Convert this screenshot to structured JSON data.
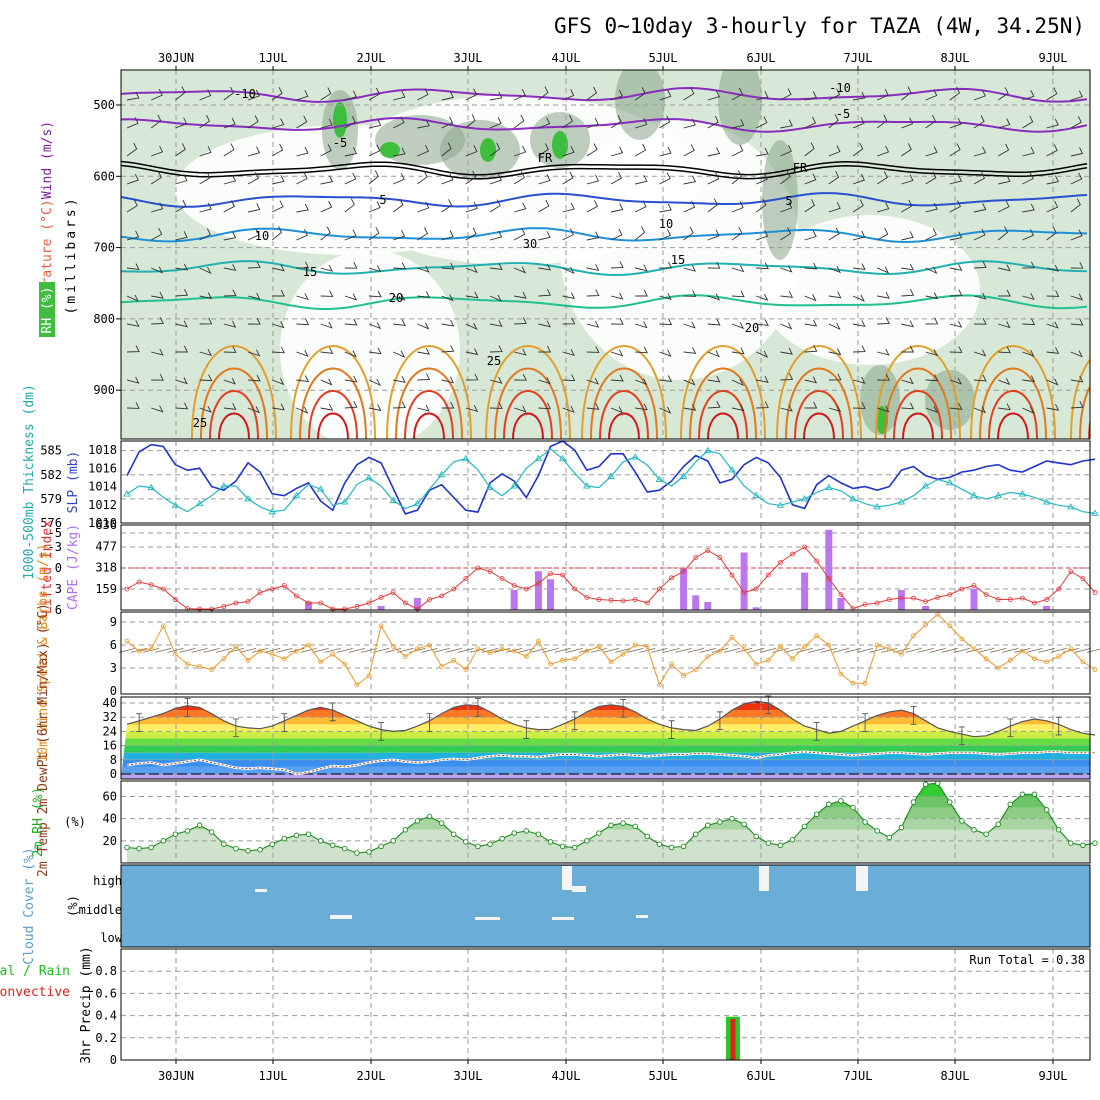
{
  "title": "GFS 0~10day 3-hourly for TAZA (4W, 34.25N)",
  "dates": [
    "30JUN",
    "1JUL",
    "2JUL",
    "3JUL",
    "4JUL",
    "5JUL",
    "6JUL",
    "7JUL",
    "8JUL",
    "9JUL"
  ],
  "colors": {
    "grid": "#9a9a9a",
    "rh_fill": "#d8e8d6",
    "rh_dark": "#8aa68a",
    "rh_green": "#3dbf3d",
    "cloud": "#6aadd6",
    "precip_total": "#22cc22",
    "precip_conv": "#dd2222"
  },
  "chart_data": [
    {
      "panel": "upper-air",
      "type": "heatmap",
      "ylabel_wind": "Wind (m/s)",
      "ylabel_temp": "Temperature (°C)",
      "ylabel_rh": "RH (%)",
      "ylabel_units": "(millibars)",
      "yticks": [
        500,
        600,
        700,
        800,
        900
      ],
      "ylim": [
        960,
        450
      ],
      "isotherm_labels": [
        "-10",
        "-10",
        "-5",
        "-5",
        "FR",
        "FR",
        "5",
        "5",
        "10",
        "10",
        "15",
        "15",
        "20",
        "20",
        "25",
        "25",
        "30"
      ]
    },
    {
      "panel": "slp-thickness",
      "type": "line",
      "ylabel_left": "1000-500mb Thickness (dm)",
      "ylabel_right": "SLP (mb)",
      "yticks_left": [
        "585",
        "582",
        "579",
        "576"
      ],
      "yticks_right": [
        "1018",
        "1016",
        "1014",
        "1012",
        "1010"
      ],
      "slp_ylim": [
        1010,
        1019
      ],
      "thick_ylim": [
        576,
        586
      ],
      "series": [
        {
          "name": "SLP",
          "values": [
            1015.2,
            1017.8,
            1018.6,
            1018.4,
            1016.4,
            1015.8,
            1016.0,
            1014.0,
            1013.6,
            1014.6,
            1016.6,
            1015.6,
            1013.2,
            1013.0,
            1013.8,
            1014.4,
            1012.4,
            1011.4,
            1014.4,
            1016.4,
            1017.2,
            1016.6,
            1013.8,
            1011.0,
            1011.4,
            1013.6,
            1014.2,
            1012.8,
            1011.4,
            1011.2,
            1014.4,
            1015.4,
            1014.6,
            1012.8,
            1015.2,
            1018.4,
            1019.0,
            1018.0,
            1015.8,
            1016.2,
            1017.6,
            1017.6,
            1015.6,
            1013.4,
            1013.6,
            1014.6,
            1016.2,
            1017.4,
            1016.8,
            1014.4,
            1014.8,
            1016.4,
            1017.2,
            1016.6,
            1015.0,
            1012.0,
            1011.6,
            1014.2,
            1015.2,
            1014.4,
            1013.8,
            1014.0,
            1013.6,
            1014.0,
            1015.8,
            1016.2,
            1015.2,
            1014.8,
            1015.0,
            1015.6,
            1015.8,
            1016.2,
            1016.4,
            1015.8,
            1015.6,
            1016.2,
            1016.8,
            1016.6,
            1016.4,
            1016.8,
            1017.0
          ]
        },
        {
          "name": "Thickness",
          "values": [
            579.6,
            580.6,
            580.4,
            579.2,
            578.2,
            577.4,
            578.4,
            579.4,
            580.6,
            580.6,
            579.0,
            578.0,
            577.4,
            577.6,
            579.4,
            580.8,
            580.2,
            578.2,
            578.6,
            580.8,
            581.6,
            580.6,
            578.8,
            577.8,
            578.4,
            580.2,
            582.0,
            583.6,
            584.0,
            582.6,
            580.4,
            579.4,
            580.6,
            582.8,
            584.0,
            585.2,
            584.0,
            582.2,
            580.6,
            580.4,
            581.8,
            583.6,
            584.2,
            583.2,
            581.4,
            580.6,
            581.8,
            583.6,
            585.0,
            584.6,
            582.6,
            580.6,
            579.4,
            578.4,
            578.2,
            578.6,
            579.0,
            579.8,
            580.4,
            580.0,
            579.0,
            578.4,
            578.0,
            578.2,
            578.6,
            579.4,
            580.6,
            581.4,
            581.0,
            580.2,
            579.4,
            579.0,
            579.4,
            579.8,
            579.6,
            579.2,
            578.6,
            578.2,
            578.0,
            577.4,
            577.2
          ]
        }
      ]
    },
    {
      "panel": "cape-li",
      "type": "bar",
      "ylabel_left": "Lifted Index",
      "ylabel_right": "CAPE (J/kg)",
      "yticks_left": [
        "-5",
        "-3",
        "0",
        "3",
        "6"
      ],
      "yticks_right": [
        "636",
        "477",
        "318",
        "159"
      ],
      "li_ylim": [
        6,
        -6
      ],
      "cape_ylim": [
        0,
        636
      ],
      "series": [
        {
          "name": "Lifted Index",
          "values": [
            3,
            2,
            2.4,
            3,
            4.5,
            5.8,
            6.4,
            6,
            5.5,
            5,
            4.8,
            3.5,
            3,
            2.5,
            4,
            5,
            5,
            6,
            6.5,
            5.5,
            5,
            4.2,
            3.5,
            5,
            6.2,
            4.5,
            4,
            3,
            1.5,
            0,
            0.5,
            1.5,
            2.5,
            3,
            2.2,
            0.8,
            1,
            3,
            4.2,
            4.5,
            4.6,
            4.7,
            4.5,
            5,
            3,
            1.4,
            0.5,
            -1.5,
            -2.5,
            -1.5,
            1,
            3.5,
            3,
            1,
            -0.8,
            -2,
            -3,
            -1,
            1.5,
            3.8,
            5.8,
            5.2,
            5,
            4.5,
            4.3,
            4.3,
            4.8,
            4.2,
            3.8,
            3,
            2.5,
            3.8,
            4.5,
            4.5,
            4.3,
            5,
            4.5,
            3,
            0.5,
            1.5,
            3.5
          ]
        },
        {
          "name": "CAPE",
          "x": [
            15,
            21,
            24,
            32,
            34,
            35,
            46,
            47,
            48,
            51,
            52,
            56,
            58,
            59,
            64,
            66,
            70,
            76,
            82
          ]
        }
      ]
    },
    {
      "panel": "wind10m",
      "type": "line",
      "ylabel": "10m Wind Speed & Barbs (m/s)",
      "yticks": [
        "9",
        "6",
        "3",
        "0"
      ],
      "ylim": [
        0,
        10
      ],
      "series": [
        {
          "name": "Speed",
          "values": [
            6.5,
            5.2,
            5.5,
            8.5,
            4.8,
            3.5,
            3.2,
            2.8,
            4.2,
            5.8,
            4,
            5.2,
            4.8,
            4.2,
            5.2,
            6,
            3.8,
            4.8,
            3.5,
            0.8,
            2,
            8.5,
            5.8,
            4.5,
            5.5,
            6,
            3.2,
            4,
            2.8,
            5.5,
            5,
            5.5,
            5.2,
            4.5,
            6.5,
            3.5,
            4,
            4.2,
            5.2,
            5.8,
            3.8,
            4.8,
            6,
            5.8,
            0.8,
            3.5,
            2,
            2.8,
            4.5,
            5.2,
            7,
            5.5,
            3.5,
            4,
            5.8,
            4.2,
            5.8,
            7.2,
            6,
            2.2,
            1,
            1,
            6,
            5.5,
            4.8,
            7.2,
            8.6,
            10,
            8.5,
            6.8,
            5.5,
            4.2,
            3,
            4,
            5.2,
            4.2,
            3.8,
            4.5,
            5.5,
            3.8,
            2.8
          ]
        }
      ]
    },
    {
      "panel": "temp2m",
      "type": "area",
      "ylabel": "2m Temp 2m DewPt (6hr Min/Max) (°C)",
      "yticks": [
        "40",
        "32",
        "24",
        "16",
        "8",
        "0"
      ],
      "ylim": [
        -4,
        42
      ],
      "series": [
        {
          "name": "Temp",
          "values": [
            28,
            30,
            32,
            34,
            37,
            38.5,
            37.5,
            34,
            30,
            27,
            26,
            25.5,
            27,
            30,
            33,
            36,
            37.5,
            36,
            33,
            30,
            27,
            25,
            24,
            24.5,
            27,
            30,
            34,
            37.5,
            39,
            38.5,
            35,
            31,
            28,
            26,
            25,
            25.2,
            28,
            31,
            35,
            38,
            39,
            38,
            35,
            31,
            28,
            26,
            25,
            24.5,
            27,
            31,
            36,
            39.5,
            41,
            40,
            36,
            31,
            27,
            25,
            23,
            24,
            27,
            30,
            33,
            35,
            36,
            34,
            30,
            26,
            24,
            22.5,
            21,
            21.5,
            24,
            27,
            29.5,
            31,
            30,
            28,
            25,
            23,
            22
          ]
        },
        {
          "name": "DewPt",
          "values": [
            5,
            6,
            6.5,
            5,
            6,
            7,
            8,
            6.5,
            5,
            3.5,
            3,
            3.5,
            3,
            2.5,
            0,
            1,
            3,
            4.5,
            4,
            5,
            6.5,
            7.5,
            8,
            7,
            6.5,
            7,
            8,
            8.5,
            8,
            9,
            10,
            10.5,
            10,
            10,
            9.5,
            10.5,
            11,
            11,
            10.5,
            10,
            10.5,
            11,
            10.5,
            10,
            10.5,
            11,
            11,
            11.5,
            11.5,
            11,
            10.5,
            10,
            9,
            10.5,
            11,
            12,
            12.5,
            12,
            11.5,
            11,
            10.5,
            11,
            11.5,
            12,
            12,
            11.5,
            11,
            11.5,
            12,
            12,
            12,
            11.5,
            11,
            11.5,
            12,
            12,
            12.5,
            12.5,
            12,
            12,
            12
          ]
        }
      ]
    },
    {
      "panel": "rh2m",
      "type": "area",
      "ylabel": "2m RH (%)",
      "yticks": [
        "60",
        "40",
        "20"
      ],
      "ylim": [
        0,
        74
      ],
      "series": [
        {
          "name": "RH",
          "values": [
            14,
            13,
            14,
            20,
            26,
            29,
            34,
            28,
            17,
            13,
            11,
            12,
            17,
            22,
            25,
            26,
            20,
            16,
            13,
            9,
            10,
            15,
            20,
            30,
            38,
            42,
            36,
            26,
            19,
            15,
            17,
            22,
            27,
            29,
            26,
            19,
            15,
            14,
            20,
            27,
            34,
            36,
            33,
            24,
            17,
            14,
            15,
            26,
            34,
            37,
            40,
            35,
            24,
            18,
            16,
            21,
            33,
            44,
            53,
            56,
            50,
            37,
            29,
            23,
            32,
            55,
            71,
            72,
            55,
            38,
            30,
            26,
            35,
            53,
            62,
            62,
            48,
            30,
            18,
            16,
            18
          ]
        }
      ]
    },
    {
      "panel": "cloud",
      "type": "heatmap",
      "ylabel": "Cloud Cover (%)",
      "yticks": [
        "high",
        "middle",
        "low"
      ]
    },
    {
      "panel": "precip",
      "type": "bar",
      "ylabel_total": "Total / Rain",
      "ylabel_conv": "Convective",
      "ylabel_units": "3hr Precip (mm)",
      "yticks": [
        "0.8",
        "0.6",
        "0.4",
        "0.2",
        "0"
      ],
      "ylim": [
        0,
        1.0
      ],
      "annotation": "Run Total = 0.38",
      "series": [
        {
          "name": "Total",
          "index": [
            49
          ],
          "values": [
            0.39
          ]
        },
        {
          "name": "Convective",
          "index": [
            49
          ],
          "values": [
            0.37
          ]
        }
      ]
    }
  ]
}
